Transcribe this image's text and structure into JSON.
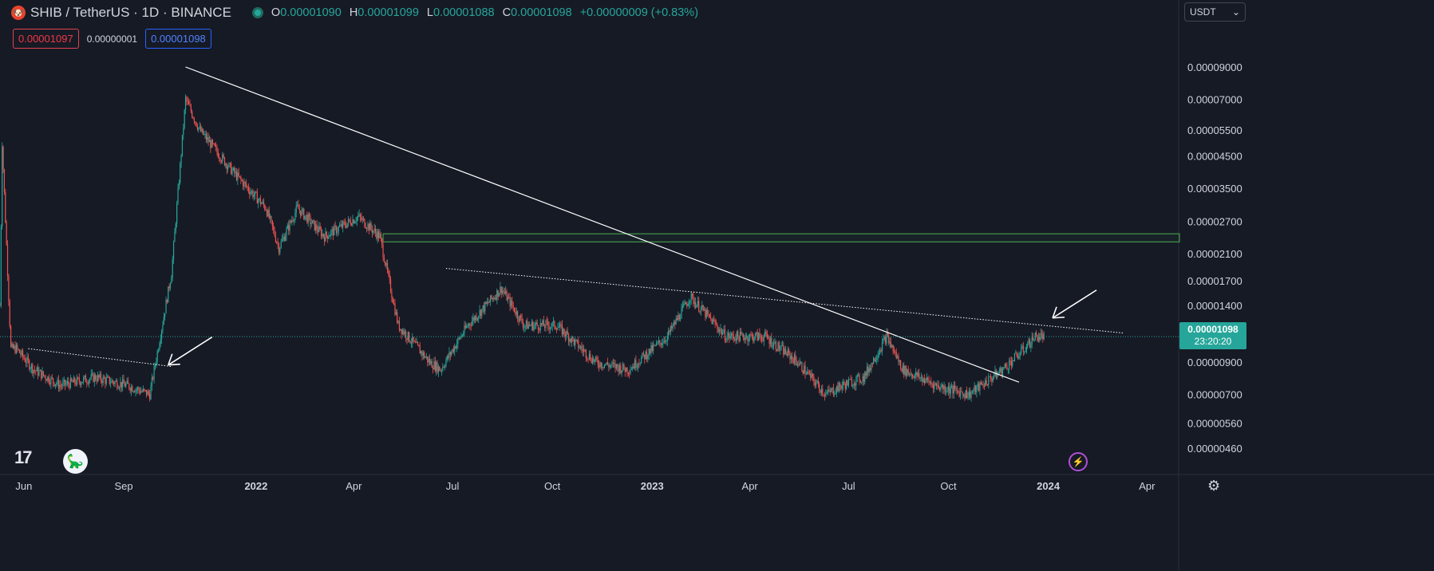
{
  "header": {
    "symbol_icon": "shib-logo",
    "title": "SHIB / TetherUS · 1D · BINANCE",
    "ohlc": {
      "o_label": "O",
      "o": "0.00001090",
      "h_label": "H",
      "h": "0.00001099",
      "l_label": "L",
      "l": "0.00001088",
      "c_label": "C",
      "c": "0.00001098",
      "change": "+0.00000009 (+0.83%)"
    },
    "bid": "0.00001097",
    "spread": "0.00000001",
    "ask": "0.00001098",
    "currency": "USDT"
  },
  "last_price": {
    "value": "0.00001098",
    "countdown": "23:20:20"
  },
  "colors": {
    "up": "#26a69a",
    "down": "#ef5350",
    "bg": "#161a25",
    "trendline": "#ffffff",
    "zone": "#4caf50"
  },
  "icons": {
    "bolt": "lightning-icon",
    "settings": "gear-icon",
    "logo": "tradingview-logo"
  },
  "chart_data": {
    "type": "candlestick",
    "y_scale": "log",
    "y_ticks": [
      "0.00009000",
      "0.00007000",
      "0.00005500",
      "0.00004500",
      "0.00003500",
      "0.00002700",
      "0.00002100",
      "0.00001700",
      "0.00001400",
      "0.00000900",
      "0.00000700",
      "0.00000560",
      "0.00000460"
    ],
    "x_ticks": [
      "Jun",
      "Sep",
      "2022",
      "Apr",
      "Jul",
      "Oct",
      "2023",
      "Apr",
      "Jul",
      "Oct",
      "2024",
      "Apr"
    ],
    "x_ticks_bold": [
      "2022",
      "2023",
      "2024"
    ],
    "x_range": [
      "2021-05-10",
      "2024-04-25"
    ],
    "y_range": [
      4.2e-06,
      9.8e-06
    ],
    "series": [
      {
        "name": "",
        "ohlc_approx": [
          [
            "2021-05-10",
            1.4e-05
          ],
          [
            "2021-05-12",
            5e-05
          ],
          [
            "2021-05-20",
            1e-05
          ],
          [
            "2021-05-25",
            1e-05
          ],
          [
            "2021-06-10",
            8.5e-06
          ],
          [
            "2021-07-05",
            7.5e-06
          ],
          [
            "2021-08-05",
            8e-06
          ],
          [
            "2021-09-05",
            7.5e-06
          ],
          [
            "2021-09-25",
            7e-06
          ],
          [
            "2021-10-15",
            1.8e-05
          ],
          [
            "2021-10-28",
            7e-05
          ],
          [
            "2021-11-10",
            5.5e-05
          ],
          [
            "2021-12-10",
            4e-05
          ],
          [
            "2022-01-10",
            3e-05
          ],
          [
            "2022-01-22",
            2.2e-05
          ],
          [
            "2022-02-08",
            3e-05
          ],
          [
            "2022-03-05",
            2.4e-05
          ],
          [
            "2022-04-05",
            2.8e-05
          ],
          [
            "2022-04-25",
            2.4e-05
          ],
          [
            "2022-05-12",
            1.2e-05
          ],
          [
            "2022-06-10",
            9e-06
          ],
          [
            "2022-06-20",
            8.5e-06
          ],
          [
            "2022-07-15",
            1.2e-05
          ],
          [
            "2022-08-15",
            1.6e-05
          ],
          [
            "2022-09-05",
            1.2e-05
          ],
          [
            "2022-10-05",
            1.2e-05
          ],
          [
            "2022-11-10",
            9e-06
          ],
          [
            "2022-12-10",
            8.5e-06
          ],
          [
            "2023-01-15",
            1.1e-05
          ],
          [
            "2023-02-05",
            1.5e-05
          ],
          [
            "2023-03-10",
            1.1e-05
          ],
          [
            "2023-04-15",
            1.1e-05
          ],
          [
            "2023-05-15",
            9e-06
          ],
          [
            "2023-06-10",
            7e-06
          ],
          [
            "2023-06-25",
            7.5e-06
          ],
          [
            "2023-07-15",
            8e-06
          ],
          [
            "2023-08-05",
            1.1e-05
          ],
          [
            "2023-08-20",
            8.5e-06
          ],
          [
            "2023-09-20",
            7.5e-06
          ],
          [
            "2023-10-20",
            7e-06
          ],
          [
            "2023-11-20",
            8.5e-06
          ],
          [
            "2023-12-10",
            1e-05
          ],
          [
            "2023-12-20",
            1.1e-05
          ],
          [
            "2023-12-28",
            1.1e-05
          ]
        ]
      }
    ],
    "annotations": {
      "trendlines": [
        {
          "from": [
            "2021-10-28",
            9e-05
          ],
          "to": [
            "2023-12-05",
            7.7e-06
          ],
          "style": "solid"
        },
        {
          "from": [
            "2021-06-05",
            1e-05
          ],
          "to": [
            "2021-10-15",
            8.7e-06
          ],
          "style": "dotted"
        },
        {
          "from": [
            "2022-06-25",
            1.87e-05
          ],
          "to": [
            "2024-03-10",
            1.13e-05
          ],
          "style": "dotted"
        }
      ],
      "zone": {
        "from": "2022-04-28",
        "to": "2024-04-25",
        "low": 2.3e-05,
        "high": 2.45e-05
      },
      "arrows": [
        {
          "tip": [
            "2021-10-12",
            8.8e-06
          ],
          "direction": "down-left"
        },
        {
          "tip": [
            "2024-01-05",
            1.27e-05
          ],
          "direction": "down-left"
        }
      ]
    }
  }
}
